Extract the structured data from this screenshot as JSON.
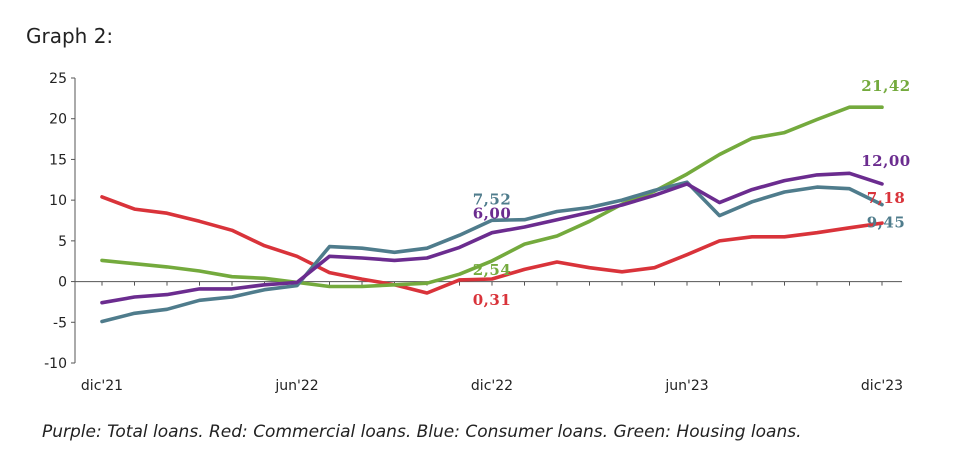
{
  "page": {
    "title": "Graph 2:",
    "caption": "Purple: Total loans. Red: Commercial loans. Blue: Consumer loans. Green: Housing loans."
  },
  "chart_data": {
    "type": "line",
    "title": "",
    "xlabel": "",
    "ylabel": "",
    "ylim": [
      -10,
      25
    ],
    "yticks": [
      -10,
      -5,
      0,
      5,
      10,
      15,
      20,
      25
    ],
    "grid": false,
    "x_tick_labels": [
      "dic'21",
      "jun'22",
      "dic'22",
      "jun'23",
      "dic'23"
    ],
    "x_tick_index": [
      0,
      6,
      12,
      18,
      24
    ],
    "series": [
      {
        "color": "#6b2c8f",
        "values": [
          -2.6,
          -1.9,
          -1.6,
          -0.9,
          -0.9,
          -0.4,
          -0.1,
          3.1,
          2.9,
          2.6,
          2.9,
          4.2,
          6.0,
          6.7,
          7.6,
          8.5,
          9.4,
          10.6,
          12.0,
          9.7,
          11.3,
          12.4,
          13.1,
          13.3,
          12.0
        ],
        "end_label": "12,00",
        "mid_label": "6,00"
      },
      {
        "color": "#d9333a",
        "values": [
          10.4,
          8.9,
          8.4,
          7.4,
          6.3,
          4.4,
          3.1,
          1.1,
          0.3,
          -0.4,
          -1.4,
          0.2,
          0.31,
          1.5,
          2.4,
          1.7,
          1.2,
          1.7,
          3.3,
          5.0,
          5.5,
          5.5,
          6.0,
          6.6,
          7.18
        ],
        "end_label": "7,18",
        "mid_label": "0,31"
      },
      {
        "color": "#4f7c8c",
        "values": [
          -4.9,
          -3.9,
          -3.4,
          -2.3,
          -1.9,
          -1.0,
          -0.5,
          4.3,
          4.1,
          3.6,
          4.1,
          5.7,
          7.52,
          7.6,
          8.6,
          9.1,
          10.0,
          11.2,
          12.2,
          8.1,
          9.8,
          11.0,
          11.6,
          11.4,
          9.45
        ],
        "end_label": "9,45",
        "mid_label": "7,52"
      },
      {
        "color": "#74aa3d",
        "values": [
          2.6,
          2.2,
          1.8,
          1.3,
          0.6,
          0.4,
          -0.1,
          -0.6,
          -0.6,
          -0.4,
          -0.2,
          0.9,
          2.54,
          4.6,
          5.6,
          7.4,
          9.5,
          11.1,
          13.2,
          15.6,
          17.6,
          18.3,
          19.9,
          21.42,
          21.42
        ],
        "end_label": "21,42",
        "mid_label": "2,54"
      }
    ]
  }
}
